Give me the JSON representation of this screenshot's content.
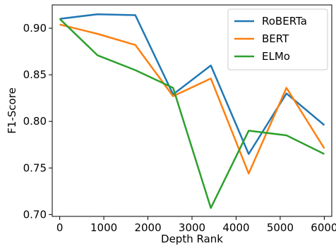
{
  "chart_data": {
    "type": "line",
    "title": "",
    "xlabel": "Depth Rank",
    "ylabel": "F1-Score",
    "xlim": [
      -170,
      6170
    ],
    "ylim": [
      0.698,
      0.925
    ],
    "xticks": [
      0,
      1000,
      2000,
      3000,
      4000,
      5000,
      6000
    ],
    "xtick_labels": [
      "0",
      "1000",
      "2000",
      "3000",
      "4000",
      "5000",
      "6000"
    ],
    "yticks": [
      0.7,
      0.75,
      0.8,
      0.85,
      0.9
    ],
    "ytick_labels": [
      "0.70",
      "0.75",
      "0.80",
      "0.85",
      "0.90"
    ],
    "grid": false,
    "legend_position": "top-right",
    "x": [
      0,
      857,
      1714,
      2571,
      3428,
      4285,
      5142,
      6000
    ],
    "series": [
      {
        "name": "RoBERTa",
        "color": "#1f77b4",
        "values": [
          0.91,
          0.915,
          0.914,
          0.829,
          0.86,
          0.765,
          0.83,
          0.796
        ]
      },
      {
        "name": "BERT",
        "color": "#ff7f0e",
        "values": [
          0.904,
          0.894,
          0.882,
          0.827,
          0.846,
          0.744,
          0.836,
          0.771
        ]
      },
      {
        "name": "ELMo",
        "color": "#2ca02c",
        "values": [
          0.91,
          0.871,
          0.855,
          0.836,
          0.707,
          0.79,
          0.785,
          0.765
        ]
      }
    ]
  }
}
